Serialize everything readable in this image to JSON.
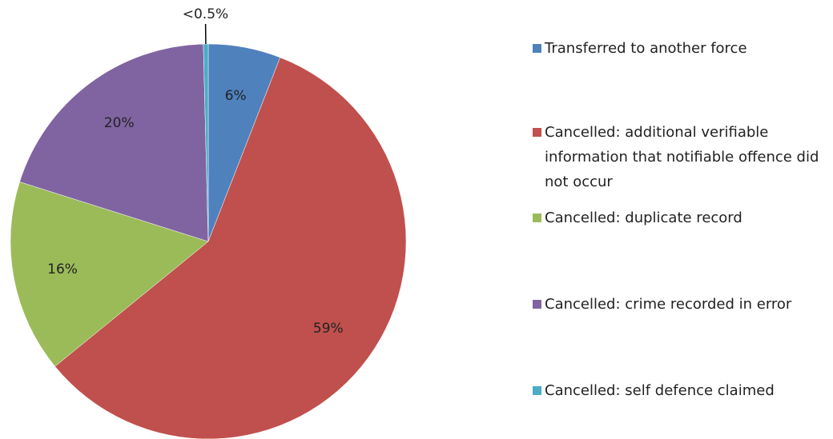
{
  "chart_data": {
    "type": "pie",
    "categories": [
      "Transferred to another force",
      "Cancelled: additional verifiable information that notifiable offence did not occur",
      "Cancelled: duplicate record",
      "Cancelled: crime recorded in error",
      "Cancelled: self defence claimed"
    ],
    "values": [
      6,
      59,
      16,
      20,
      0.4
    ],
    "value_labels": [
      "6%",
      "59%",
      "16%",
      "20%",
      "<0.5%"
    ],
    "colors": [
      "#4f81bd",
      "#c0504d",
      "#9bbb59",
      "#8064a2",
      "#4bacc6"
    ],
    "legend": "right"
  }
}
